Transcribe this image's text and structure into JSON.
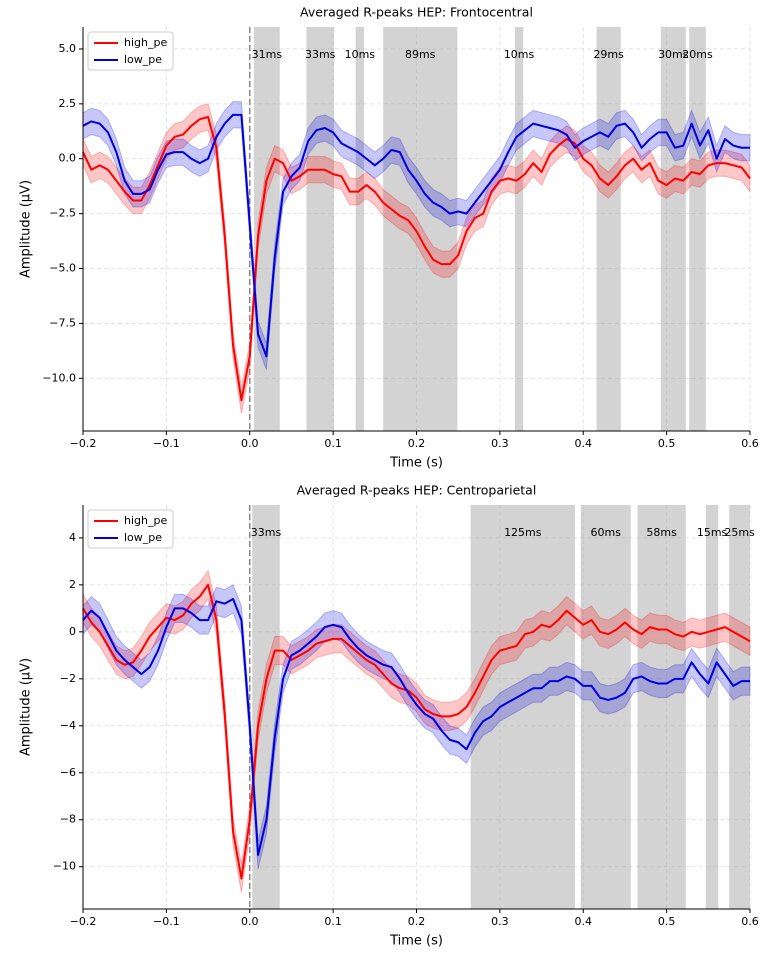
{
  "chart_data": [
    {
      "type": "line",
      "title": "Averaged R-peaks HEP: Frontocentral",
      "xlabel": "Time (s)",
      "ylabel": "Amplitude (µV)",
      "xlim": [
        -0.2,
        0.6
      ],
      "ylim": [
        -12.4,
        6.0
      ],
      "xticks": [
        {
          "value": -0.2,
          "label": "−0.2"
        },
        {
          "value": -0.1,
          "label": "−0.1"
        },
        {
          "value": 0,
          "label": "0.0"
        },
        0.1,
        0.2,
        0.3,
        0.4,
        0.5,
        0.6
      ],
      "yticks": [
        {
          "value": -10,
          "label": "−10.0"
        },
        {
          "value": -7.5,
          "label": "−7.5"
        },
        {
          "value": -5,
          "label": "−5.0"
        },
        {
          "value": -2.5,
          "label": "−2.5"
        },
        {
          "value": 0,
          "label": "0.0"
        },
        2.5,
        {
          "value": 5,
          "label": "5.0"
        }
      ],
      "grid": true,
      "legend": "upper left",
      "vline": 0,
      "spans": [
        {
          "start": 0.005,
          "end": 0.036,
          "label": "31ms"
        },
        {
          "start": 0.068,
          "end": 0.101,
          "label": "33ms"
        },
        {
          "start": 0.127,
          "end": 0.137,
          "label": "10ms"
        },
        {
          "start": 0.16,
          "end": 0.249,
          "label": "89ms"
        },
        {
          "start": 0.318,
          "end": 0.328,
          "label": "10ms"
        },
        {
          "start": 0.416,
          "end": 0.445,
          "label": "29ms"
        },
        {
          "start": 0.493,
          "end": 0.523,
          "label": "30ms"
        },
        {
          "start": 0.527,
          "end": 0.547,
          "label": "20ms"
        }
      ],
      "x": [
        -0.2,
        -0.19,
        -0.18,
        -0.17,
        -0.16,
        -0.15,
        -0.14,
        -0.13,
        -0.12,
        -0.11,
        -0.1,
        -0.09,
        -0.08,
        -0.07,
        -0.06,
        -0.05,
        -0.04,
        -0.03,
        -0.02,
        -0.01,
        0,
        0.01,
        0.02,
        0.03,
        0.04,
        0.05,
        0.06,
        0.07,
        0.08,
        0.09,
        0.1,
        0.11,
        0.12,
        0.13,
        0.14,
        0.15,
        0.16,
        0.17,
        0.18,
        0.19,
        0.2,
        0.21,
        0.22,
        0.23,
        0.24,
        0.25,
        0.26,
        0.27,
        0.28,
        0.29,
        0.3,
        0.31,
        0.32,
        0.33,
        0.34,
        0.35,
        0.36,
        0.37,
        0.38,
        0.39,
        0.4,
        0.41,
        0.42,
        0.43,
        0.44,
        0.45,
        0.46,
        0.47,
        0.48,
        0.49,
        0.5,
        0.51,
        0.52,
        0.53,
        0.54,
        0.55,
        0.56,
        0.57,
        0.58,
        0.59,
        0.6
      ],
      "series": [
        {
          "name": "high_pe",
          "color": "#ff0000",
          "error": 0.6,
          "values": [
            0.3,
            -0.5,
            -0.3,
            -0.5,
            -1.0,
            -1.5,
            -1.9,
            -1.9,
            -1.2,
            -0.3,
            0.6,
            1.0,
            1.1,
            1.5,
            1.8,
            1.9,
            0.5,
            -3.5,
            -8.5,
            -11.0,
            -9.0,
            -3.5,
            -1.0,
            0.0,
            -0.2,
            -1.0,
            -0.8,
            -0.5,
            -0.5,
            -0.5,
            -0.7,
            -0.8,
            -1.5,
            -1.5,
            -1.2,
            -1.5,
            -2.0,
            -2.3,
            -2.6,
            -2.8,
            -3.3,
            -4.0,
            -4.6,
            -4.8,
            -4.8,
            -4.4,
            -3.3,
            -2.7,
            -2.5,
            -1.5,
            -1.0,
            -0.9,
            -1.0,
            -0.7,
            -0.2,
            -0.6,
            0.2,
            0.6,
            0.9,
            0.7,
            0.0,
            -0.3,
            -0.9,
            -1.2,
            -0.8,
            -0.3,
            0.0,
            -0.5,
            -0.2,
            -1.0,
            -1.2,
            -0.9,
            -1.0,
            -0.6,
            -0.7,
            -0.3,
            -0.2,
            -0.2,
            -0.3,
            -0.4,
            -0.9
          ]
        },
        {
          "name": "low_pe",
          "color": "#0000dd",
          "error": 0.6,
          "values": [
            1.5,
            1.7,
            1.6,
            1.2,
            0.3,
            -1.0,
            -1.6,
            -1.6,
            -1.4,
            -0.5,
            0.2,
            0.3,
            0.3,
            0.0,
            -0.2,
            0.0,
            1.0,
            1.6,
            2.0,
            2.0,
            -3.0,
            -8.0,
            -9.0,
            -4.5,
            -1.5,
            -0.8,
            -0.4,
            0.8,
            1.3,
            1.4,
            1.2,
            0.7,
            0.5,
            0.3,
            0.0,
            -0.3,
            0.0,
            0.4,
            0.3,
            -0.5,
            -1.0,
            -1.6,
            -2.0,
            -2.2,
            -2.5,
            -2.4,
            -2.5,
            -2.0,
            -1.5,
            -1.0,
            -0.5,
            0.3,
            1.0,
            1.3,
            1.6,
            1.5,
            1.4,
            1.3,
            1.1,
            0.5,
            0.8,
            1.0,
            1.2,
            1.0,
            1.5,
            1.6,
            1.2,
            0.5,
            0.9,
            1.2,
            1.2,
            0.5,
            0.6,
            1.6,
            0.6,
            1.3,
            0.0,
            0.9,
            0.6,
            0.5,
            0.5
          ]
        }
      ]
    },
    {
      "type": "line",
      "title": "Averaged R-peaks HEP: Centroparietal",
      "xlabel": "Time (s)",
      "ylabel": "Amplitude (µV)",
      "xlim": [
        -0.2,
        0.6
      ],
      "ylim": [
        -11.8,
        5.4
      ],
      "xticks": [
        {
          "value": -0.2,
          "label": "−0.2"
        },
        {
          "value": -0.1,
          "label": "−0.1"
        },
        {
          "value": 0,
          "label": "0.0"
        },
        0.1,
        0.2,
        0.3,
        0.4,
        0.5,
        0.6
      ],
      "yticks": [
        {
          "value": -10,
          "label": "−10"
        },
        {
          "value": -8,
          "label": "−8"
        },
        {
          "value": -6,
          "label": "−6"
        },
        {
          "value": -4,
          "label": "−4"
        },
        {
          "value": -2,
          "label": "−2"
        },
        0,
        2,
        4
      ],
      "grid": true,
      "legend": "upper left",
      "vline": 0,
      "spans": [
        {
          "start": 0.003,
          "end": 0.036,
          "label": "33ms"
        },
        {
          "start": 0.265,
          "end": 0.39,
          "label": "125ms"
        },
        {
          "start": 0.397,
          "end": 0.457,
          "label": "60ms"
        },
        {
          "start": 0.465,
          "end": 0.523,
          "label": "58ms"
        },
        {
          "start": 0.547,
          "end": 0.562,
          "label": "15ms"
        },
        {
          "start": 0.575,
          "end": 0.6,
          "label": "25ms"
        }
      ],
      "x": [
        -0.2,
        -0.19,
        -0.18,
        -0.17,
        -0.16,
        -0.15,
        -0.14,
        -0.13,
        -0.12,
        -0.11,
        -0.1,
        -0.09,
        -0.08,
        -0.07,
        -0.06,
        -0.05,
        -0.04,
        -0.03,
        -0.02,
        -0.01,
        0,
        0.01,
        0.02,
        0.03,
        0.04,
        0.05,
        0.06,
        0.07,
        0.08,
        0.09,
        0.1,
        0.11,
        0.12,
        0.13,
        0.14,
        0.15,
        0.16,
        0.17,
        0.18,
        0.19,
        0.2,
        0.21,
        0.22,
        0.23,
        0.24,
        0.25,
        0.26,
        0.27,
        0.28,
        0.29,
        0.3,
        0.31,
        0.32,
        0.33,
        0.34,
        0.35,
        0.36,
        0.37,
        0.38,
        0.39,
        0.4,
        0.41,
        0.42,
        0.43,
        0.44,
        0.45,
        0.46,
        0.47,
        0.48,
        0.49,
        0.5,
        0.51,
        0.52,
        0.53,
        0.54,
        0.55,
        0.56,
        0.57,
        0.58,
        0.59,
        0.6
      ],
      "series": [
        {
          "name": "high_pe",
          "color": "#ff0000",
          "error": 0.6,
          "values": [
            1.0,
            0.4,
            0.0,
            -0.6,
            -1.2,
            -1.4,
            -1.3,
            -0.8,
            -0.2,
            0.2,
            0.6,
            0.5,
            0.7,
            1.2,
            1.5,
            2.0,
            0.5,
            -3.5,
            -8.5,
            -10.5,
            -8.0,
            -4.0,
            -2.0,
            -0.8,
            -0.8,
            -1.2,
            -1.0,
            -0.8,
            -0.5,
            -0.4,
            -0.3,
            -0.3,
            -0.6,
            -0.9,
            -1.2,
            -1.4,
            -1.8,
            -2.2,
            -2.4,
            -2.5,
            -2.8,
            -3.3,
            -3.5,
            -3.6,
            -3.6,
            -3.5,
            -3.2,
            -2.6,
            -1.9,
            -1.2,
            -0.8,
            -0.7,
            -0.6,
            -0.1,
            0.0,
            0.3,
            0.2,
            0.5,
            0.9,
            0.6,
            0.3,
            0.5,
            0.0,
            -0.1,
            0.1,
            0.4,
            0.1,
            -0.1,
            0.2,
            0.1,
            0.1,
            -0.1,
            -0.2,
            0.0,
            -0.1,
            0.0,
            0.1,
            0.2,
            0.0,
            -0.2,
            -0.4
          ]
        },
        {
          "name": "low_pe",
          "color": "#0000dd",
          "error": 0.6,
          "values": [
            0.5,
            0.9,
            0.6,
            -0.1,
            -0.8,
            -1.2,
            -1.5,
            -1.8,
            -1.5,
            -0.8,
            0.2,
            1.0,
            1.0,
            0.8,
            0.5,
            0.5,
            1.3,
            1.2,
            1.4,
            0.5,
            -4.0,
            -9.5,
            -8.0,
            -4.5,
            -2.0,
            -1.0,
            -0.8,
            -0.5,
            -0.2,
            0.2,
            0.3,
            0.2,
            -0.3,
            -0.7,
            -1.0,
            -1.2,
            -1.4,
            -1.5,
            -2.0,
            -2.6,
            -3.1,
            -3.5,
            -3.7,
            -4.2,
            -4.6,
            -4.7,
            -5.0,
            -4.3,
            -3.8,
            -3.6,
            -3.2,
            -3.0,
            -2.8,
            -2.6,
            -2.4,
            -2.4,
            -2.1,
            -2.1,
            -1.9,
            -2.0,
            -2.3,
            -2.3,
            -2.8,
            -2.9,
            -2.8,
            -2.6,
            -2.0,
            -1.9,
            -2.1,
            -2.2,
            -2.2,
            -2.0,
            -2.0,
            -1.3,
            -1.8,
            -2.2,
            -1.3,
            -1.8,
            -2.3,
            -2.1,
            -2.1
          ]
        }
      ]
    }
  ]
}
